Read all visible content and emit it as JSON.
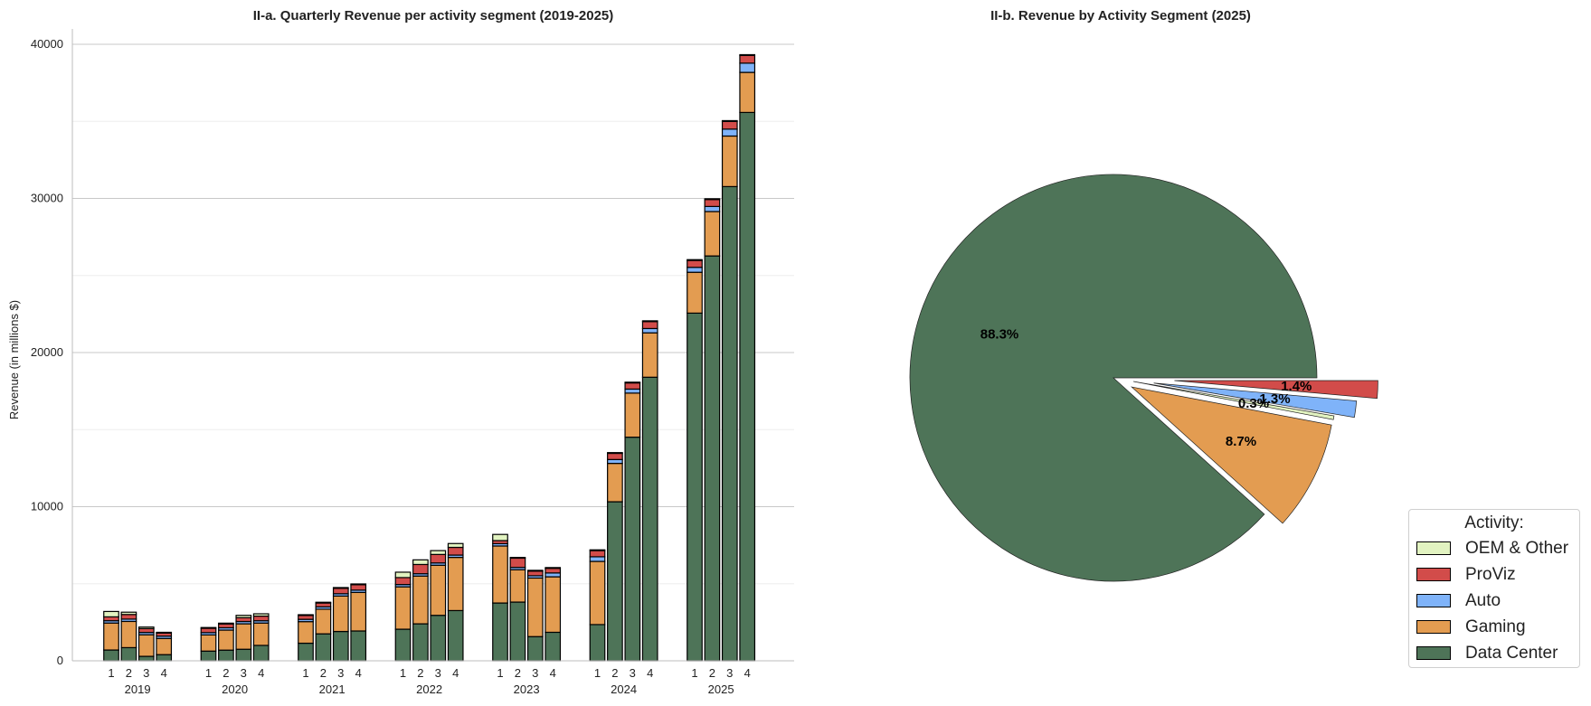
{
  "chart_data": [
    {
      "type": "bar",
      "stacked": true,
      "title": "II-a. Quarterly Revenue per activity segment (2019-2025)",
      "ylabel": "Revenue (in millions $)",
      "ylim": [
        0,
        41000
      ],
      "yticks": [
        "0",
        "10000",
        "20000",
        "30000",
        "40000"
      ],
      "grid": true,
      "quarter_labels": [
        "1",
        "2",
        "3",
        "4"
      ],
      "years": [
        "2019",
        "2020",
        "2021",
        "2022",
        "2023",
        "2024",
        "2025"
      ],
      "series": [
        {
          "name": "Data Center",
          "color": "#4e7458",
          "values": [
            701,
            855,
            290,
            400,
            630,
            693,
            750,
            1000,
            1141,
            1750,
            1903,
            1936,
            2050,
            2400,
            2950,
            3260,
            3750,
            3810,
            1570,
            1850,
            2350,
            10320,
            14510,
            18400,
            22560,
            26270,
            30770,
            35580
          ]
        },
        {
          "name": "Gaming",
          "color": "#e39c51",
          "values": [
            1750,
            1700,
            1400,
            1050,
            1050,
            1300,
            1650,
            1450,
            1400,
            1600,
            2300,
            2500,
            2750,
            3100,
            3250,
            3450,
            3700,
            2100,
            3800,
            3600,
            4100,
            2490,
            2860,
            2880,
            2650,
            2880,
            3280,
            2600
          ]
        },
        {
          "name": "Auto",
          "color": "#7fb3f9",
          "values": [
            150,
            150,
            150,
            150,
            150,
            150,
            150,
            150,
            150,
            150,
            150,
            150,
            150,
            150,
            150,
            150,
            150,
            150,
            150,
            250,
            300,
            250,
            260,
            280,
            320,
            330,
            450,
            600
          ]
        },
        {
          "name": "ProViz",
          "color": "#d24c4a",
          "values": [
            250,
            300,
            250,
            200,
            280,
            250,
            250,
            300,
            250,
            250,
            350,
            350,
            450,
            600,
            550,
            500,
            200,
            600,
            300,
            300,
            400,
            400,
            400,
            450,
            450,
            450,
            500,
            500
          ]
        },
        {
          "name": "OEM & Other",
          "color": "#e2f3c1",
          "values": [
            350,
            150,
            100,
            50,
            50,
            50,
            150,
            150,
            50,
            50,
            50,
            50,
            350,
            300,
            250,
            250,
            400,
            50,
            50,
            50,
            50,
            50,
            50,
            50,
            50,
            50,
            50,
            50
          ]
        }
      ]
    },
    {
      "type": "pie",
      "title": "II-b. Revenue by Activity Segment (2025)",
      "slices": [
        {
          "name": "Data Center",
          "value": 88.3,
          "label": "88.3%",
          "color": "#4e7458",
          "explode": 0
        },
        {
          "name": "Gaming",
          "value": 8.7,
          "label": "8.7%",
          "color": "#e39c51",
          "explode": 0.1
        },
        {
          "name": "OEM & Other",
          "value": 0.3,
          "label": "0.3%",
          "color": "#e2f3c1",
          "explode": 0.1
        },
        {
          "name": "Auto",
          "value": 1.3,
          "label": "1.3%",
          "color": "#7fb3f9",
          "explode": 0.2
        },
        {
          "name": "ProViz",
          "value": 1.4,
          "label": "1.4%",
          "color": "#d24c4a",
          "explode": 0.3
        }
      ]
    }
  ],
  "legend": {
    "title": "Activity:",
    "placement": "bottom-right",
    "items": [
      {
        "name": "OEM & Other",
        "color": "#e2f3c1"
      },
      {
        "name": "ProViz",
        "color": "#d24c4a"
      },
      {
        "name": "Auto",
        "color": "#7fb3f9"
      },
      {
        "name": "Gaming",
        "color": "#e39c51"
      },
      {
        "name": "Data Center",
        "color": "#4e7458"
      }
    ]
  }
}
